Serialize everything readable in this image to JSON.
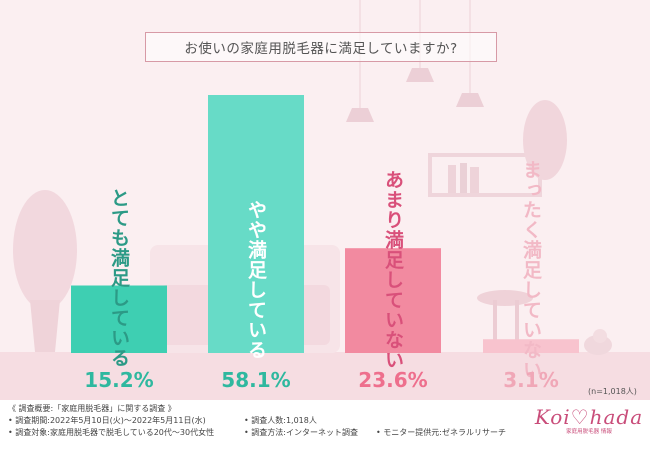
{
  "title": "お使いの家庭用脱毛器に満足していますか?",
  "sample_note": "(n=1,018人)",
  "chart_data": {
    "type": "bar",
    "title": "お使いの家庭用脱毛器に満足していますか?",
    "categories": [
      "とても満足している",
      "やや満足している",
      "あまり満足していない",
      "まったく満足していない"
    ],
    "values": [
      15.2,
      58.1,
      23.6,
      3.1
    ],
    "value_labels": [
      "15.2%",
      "58.1%",
      "23.6%",
      "3.1%"
    ],
    "unit": "%",
    "ylim": [
      0,
      60
    ],
    "colors": [
      "#3ecfb2",
      "#67dbc7",
      "#f28aa0",
      "#f8c3ce"
    ],
    "label_colors": [
      "#2c9a86",
      "#ffffff",
      "#d9507a",
      "#f2b9c6"
    ],
    "value_colors": [
      "#2fb89f",
      "#2fb89f",
      "#ee6f8d",
      "#f0a7b7"
    ]
  },
  "footer": {
    "heading": "《 調査概要:「家庭用脱毛器」に関する調査 》",
    "period": "• 調査期間:2022年5月10日(火)〜2022年5月11日(水)",
    "count": "• 調査人数:1,018人",
    "target": "• 調査対象:家庭用脱毛器で脱毛している20代〜30代女性",
    "method": "• 調査方法:インターネット調査",
    "provider": "• モニター提供元:ゼネラルリサーチ"
  },
  "logo": {
    "text": "Koi♡hada",
    "sub": "家庭用脱毛器 情報"
  }
}
